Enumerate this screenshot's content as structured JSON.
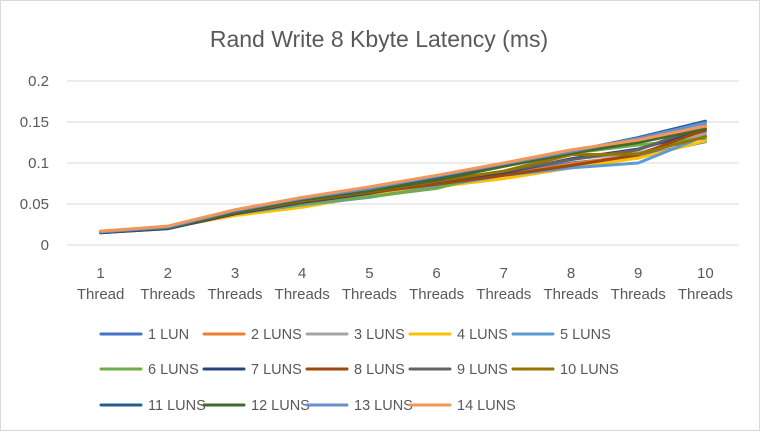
{
  "chart_data": {
    "type": "line",
    "title": "Rand Write 8 Kbyte Latency (ms)",
    "xlabel": "",
    "ylabel": "",
    "ylim": [
      0,
      0.2
    ],
    "yticks": [
      "0",
      "0.05",
      "0.1",
      "0.15",
      "0.2"
    ],
    "grid": true,
    "legend_position": "bottom",
    "categories": [
      [
        "1",
        "Thread"
      ],
      [
        "2",
        "Threads"
      ],
      [
        "3",
        "Threads"
      ],
      [
        "4",
        "Threads"
      ],
      [
        "5",
        "Threads"
      ],
      [
        "6",
        "Threads"
      ],
      [
        "7",
        "Threads"
      ],
      [
        "8",
        "Threads"
      ],
      [
        "9",
        "Threads"
      ],
      [
        "10",
        "Threads"
      ]
    ],
    "series": [
      {
        "name": "1 LUN",
        "color": "#4472C4",
        "values": [
          0.016,
          0.022,
          0.041,
          0.055,
          0.065,
          0.075,
          0.088,
          0.1,
          0.108,
          0.126
        ]
      },
      {
        "name": "2 LUNS",
        "color": "#ED7D31",
        "values": [
          0.017,
          0.022,
          0.04,
          0.053,
          0.063,
          0.073,
          0.085,
          0.099,
          0.11,
          0.138
        ]
      },
      {
        "name": "3 LUNS",
        "color": "#A5A5A5",
        "values": [
          0.016,
          0.021,
          0.039,
          0.052,
          0.062,
          0.073,
          0.088,
          0.105,
          0.112,
          0.135
        ]
      },
      {
        "name": "4 LUNS",
        "color": "#FFC000",
        "values": [
          0.016,
          0.021,
          0.036,
          0.046,
          0.06,
          0.071,
          0.081,
          0.094,
          0.106,
          0.127
        ]
      },
      {
        "name": "5 LUNS",
        "color": "#5B9BD5",
        "values": [
          0.015,
          0.02,
          0.038,
          0.049,
          0.058,
          0.071,
          0.085,
          0.094,
          0.1,
          0.133
        ]
      },
      {
        "name": "6 LUNS",
        "color": "#70AD47",
        "values": [
          0.015,
          0.021,
          0.038,
          0.05,
          0.059,
          0.069,
          0.09,
          0.112,
          0.122,
          0.13
        ]
      },
      {
        "name": "7 LUNS",
        "color": "#264478",
        "values": [
          0.015,
          0.02,
          0.038,
          0.052,
          0.063,
          0.077,
          0.088,
          0.105,
          0.117,
          0.14
        ]
      },
      {
        "name": "8 LUNS",
        "color": "#9E480E",
        "values": [
          0.016,
          0.021,
          0.039,
          0.053,
          0.064,
          0.074,
          0.085,
          0.097,
          0.11,
          0.141
        ]
      },
      {
        "name": "9 LUNS",
        "color": "#636363",
        "values": [
          0.016,
          0.021,
          0.04,
          0.054,
          0.066,
          0.078,
          0.09,
          0.104,
          0.116,
          0.146
        ]
      },
      {
        "name": "10 LUNS",
        "color": "#997300",
        "values": [
          0.016,
          0.022,
          0.04,
          0.054,
          0.065,
          0.078,
          0.09,
          0.11,
          0.111,
          0.132
        ]
      },
      {
        "name": "11 LUNS",
        "color": "#255E91",
        "values": [
          0.016,
          0.022,
          0.042,
          0.056,
          0.068,
          0.082,
          0.097,
          0.114,
          0.131,
          0.151
        ]
      },
      {
        "name": "12 LUNS",
        "color": "#43682B",
        "values": [
          0.016,
          0.021,
          0.04,
          0.055,
          0.066,
          0.079,
          0.096,
          0.112,
          0.125,
          0.142
        ]
      },
      {
        "name": "13 LUNS",
        "color": "#698ED0",
        "values": [
          0.016,
          0.022,
          0.042,
          0.057,
          0.069,
          0.084,
          0.099,
          0.114,
          0.13,
          0.149
        ]
      },
      {
        "name": "14 LUNS",
        "color": "#F1975A",
        "values": [
          0.017,
          0.023,
          0.043,
          0.058,
          0.071,
          0.085,
          0.1,
          0.116,
          0.128,
          0.145
        ]
      }
    ]
  }
}
